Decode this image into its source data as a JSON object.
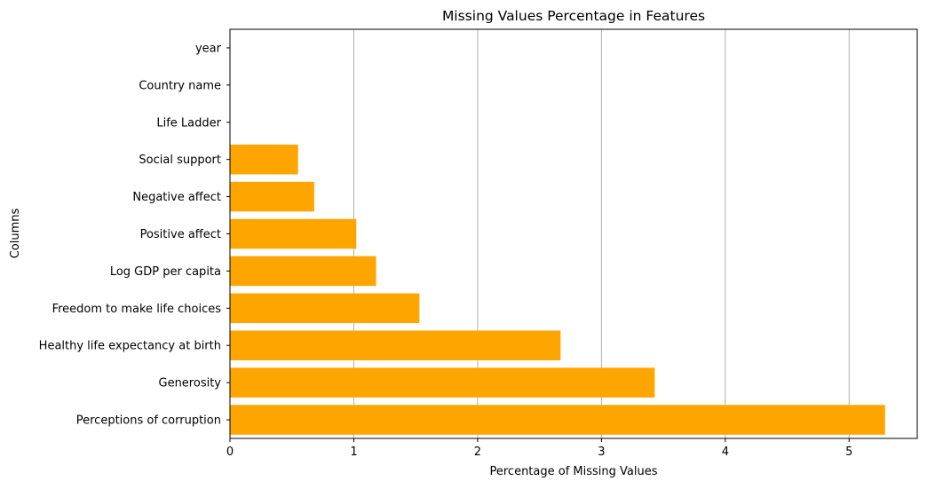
{
  "chart_data": {
    "type": "bar",
    "orientation": "horizontal",
    "title": "Missing Values Percentage in Features",
    "xlabel": "Percentage of Missing Values",
    "ylabel": "Columns",
    "categories": [
      "Perceptions of corruption",
      "Generosity",
      "Healthy life expectancy at birth",
      "Freedom to make life choices",
      "Log GDP per capita",
      "Positive affect",
      "Negative affect",
      "Social support",
      "Life Ladder",
      "Country name",
      "year"
    ],
    "values": [
      5.29,
      3.43,
      2.67,
      1.53,
      1.18,
      1.02,
      0.68,
      0.55,
      0,
      0,
      0
    ],
    "xlim": [
      0,
      5.55
    ],
    "xticks": [
      0,
      1,
      2,
      3,
      4,
      5
    ],
    "grid": "x",
    "bar_color": "#ffa500",
    "grid_color": "#b0b0b0"
  }
}
